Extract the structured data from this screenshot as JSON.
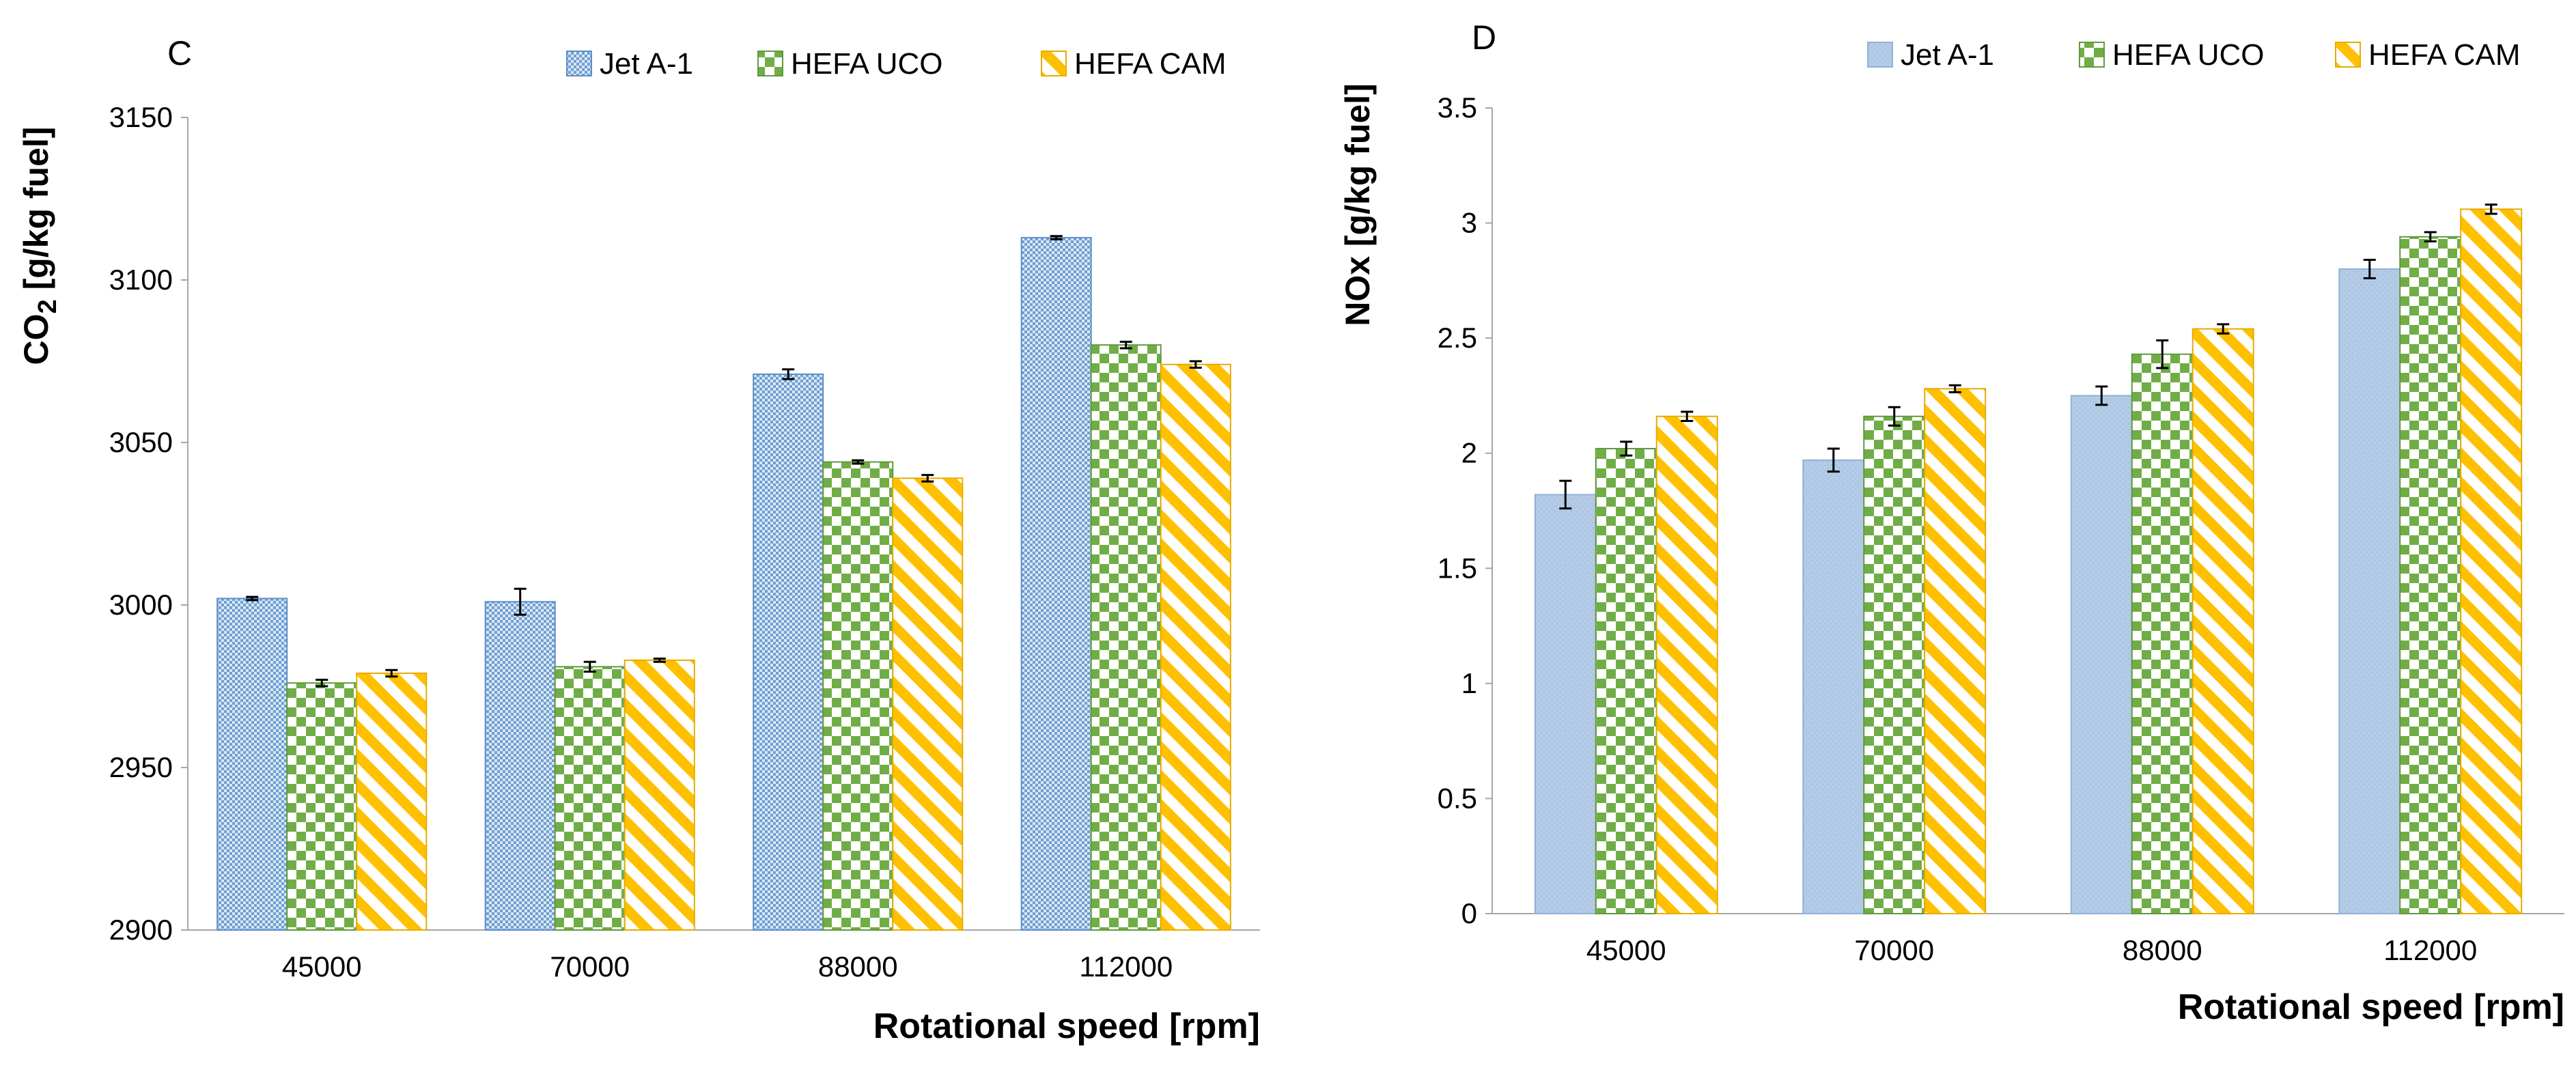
{
  "colors": {
    "jet_a1": "#7aa7d6",
    "jet_a1_fill_light": "#b5cde6",
    "jet_a1_edge": "#5b8fc7",
    "hefa_uco": "#70ad47",
    "hefa_uco_edge": "#5f9a3c",
    "hefa_cam": "#ffc000",
    "hefa_cam_edge": "#e5ac00",
    "axis": "#a6a6a6",
    "text": "#000000"
  },
  "chart_data": [
    {
      "panel_label": "C",
      "type": "bar",
      "categories": [
        "45000",
        "70000",
        "88000",
        "112000"
      ],
      "series": [
        {
          "name": "Jet A-1",
          "values": [
            3002,
            3001,
            3071,
            3113
          ],
          "errors": [
            0.5,
            4,
            1.5,
            0.5
          ]
        },
        {
          "name": "HEFA UCO",
          "values": [
            2976,
            2981,
            3044,
            3080
          ],
          "errors": [
            1,
            1.5,
            0.5,
            1
          ]
        },
        {
          "name": "HEFA CAM",
          "values": [
            2979,
            2983,
            3039,
            3074
          ],
          "errors": [
            1,
            0.5,
            1,
            1
          ]
        }
      ],
      "ylabel_main": "CO",
      "ylabel_sub": "2",
      "ylabel_rest": " [g/kg fuel]",
      "xlabel": "Rotational speed [rpm]",
      "ylim": [
        2900,
        3150
      ],
      "yticks": [
        2900,
        2950,
        3000,
        3050,
        3100,
        3150
      ],
      "ytick_labels": [
        "2900",
        "2950",
        "3000",
        "3050",
        "3100",
        "3150"
      ],
      "legend": "top"
    },
    {
      "panel_label": "D",
      "type": "bar",
      "categories": [
        "45000",
        "70000",
        "88000",
        "112000"
      ],
      "series": [
        {
          "name": "Jet A-1",
          "values": [
            1.82,
            1.97,
            2.25,
            2.8
          ],
          "errors": [
            0.06,
            0.05,
            0.04,
            0.04
          ]
        },
        {
          "name": "HEFA UCO",
          "values": [
            2.02,
            2.16,
            2.43,
            2.94
          ],
          "errors": [
            0.03,
            0.04,
            0.06,
            0.02
          ]
        },
        {
          "name": "HEFA CAM",
          "values": [
            2.16,
            2.28,
            2.54,
            3.06
          ],
          "errors": [
            0.02,
            0.015,
            0.02,
            0.02
          ]
        }
      ],
      "ylabel_main": "NOx [g/kg fuel]",
      "ylabel_sub": "",
      "ylabel_rest": "",
      "xlabel": "Rotational speed [rpm]",
      "ylim": [
        0,
        3.5
      ],
      "yticks": [
        0,
        0.5,
        1,
        1.5,
        2,
        2.5,
        3,
        3.5
      ],
      "ytick_labels": [
        "0",
        "0.5",
        "1",
        "1.5",
        "2",
        "2.5",
        "3",
        "3.5"
      ],
      "legend": "top"
    }
  ]
}
